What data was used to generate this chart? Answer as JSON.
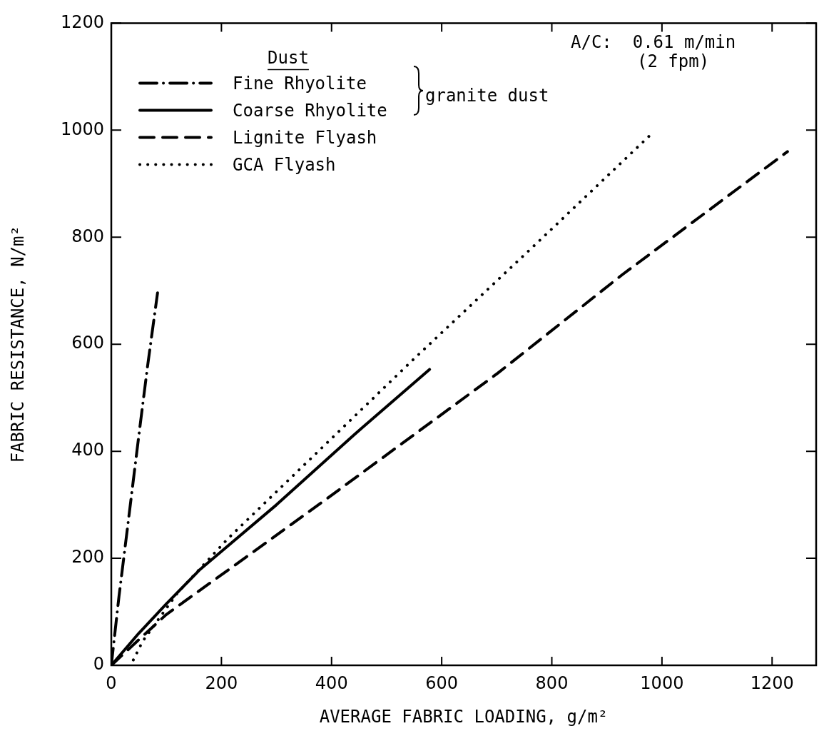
{
  "chart_data": {
    "type": "line",
    "xlabel": "AVERAGE FABRIC LOADING, g/m²",
    "ylabel": "FABRIC RESISTANCE, N/m²",
    "legend_title": "Dust",
    "xlim": [
      0,
      1280
    ],
    "ylim": [
      0,
      1200
    ],
    "xticks": [
      0,
      200,
      400,
      600,
      800,
      1000,
      1200
    ],
    "yticks": [
      0,
      200,
      400,
      600,
      800,
      1000,
      1200
    ],
    "grid": false,
    "legend": "top left",
    "marker": "none",
    "series": [
      {
        "name": "Fine Rhyolite",
        "color": "#000000",
        "line_style": "dashdot",
        "x": [
          0,
          14,
          30,
          49,
          66,
          84
        ],
        "values": [
          0,
          129,
          262,
          421,
          560,
          696
        ]
      },
      {
        "name": "Coarse Rhyolite",
        "color": "#000000",
        "line_style": "solid",
        "x": [
          0,
          50,
          100,
          160,
          300,
          440,
          578
        ],
        "values": [
          0,
          60,
          115,
          178,
          300,
          430,
          553
        ]
      },
      {
        "name": "Lignite Flyash",
        "color": "#000000",
        "line_style": "dashed",
        "x": [
          0,
          48,
          100,
          289,
          383,
          702,
          928,
          1228
        ],
        "values": [
          0,
          46,
          95,
          235,
          305,
          546,
          730,
          960
        ]
      },
      {
        "name": "GCA Flyash",
        "color": "#000000",
        "line_style": "dotted",
        "x": [
          40,
          57,
          120,
          212,
          551,
          777,
          981
        ],
        "values": [
          10,
          45,
          135,
          237,
          574,
          793,
          993
        ]
      }
    ],
    "annotations": [
      "granite dust",
      "A/C:  0.61 m/min",
      "(2 fpm)"
    ]
  }
}
